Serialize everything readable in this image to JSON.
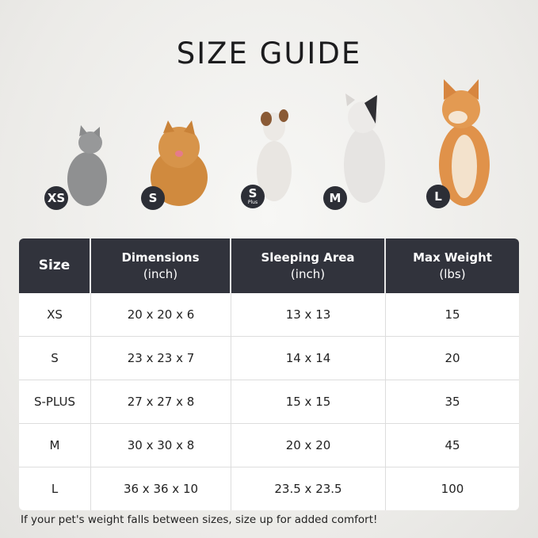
{
  "title": "SIZE GUIDE",
  "pets": [
    {
      "badge": "XS",
      "sub": "",
      "animal": "gray cat",
      "color": "#8f9091"
    },
    {
      "badge": "S",
      "sub": "",
      "animal": "pomeranian",
      "color": "#d08a3e"
    },
    {
      "badge": "S",
      "sub": "Plus",
      "animal": "jack russell terrier",
      "color": "#e9e6e2"
    },
    {
      "badge": "M",
      "sub": "",
      "animal": "french bulldog",
      "color": "#e6e4e2"
    },
    {
      "badge": "L",
      "sub": "",
      "animal": "shiba inu",
      "color": "#e0924a"
    }
  ],
  "table": {
    "headers": [
      {
        "line1": "Size",
        "line2": ""
      },
      {
        "line1": "Dimensions",
        "line2": "(inch)"
      },
      {
        "line1": "Sleeping Area",
        "line2": "(inch)"
      },
      {
        "line1": "Max Weight",
        "line2": "(lbs)"
      }
    ],
    "rows": [
      [
        "XS",
        "20 x 20 x 6",
        "13 x 13",
        "15"
      ],
      [
        "S",
        "23 x 23 x 7",
        "14 x 14",
        "20"
      ],
      [
        "S-PLUS",
        "27 x 27 x 8",
        "15 x 15",
        "35"
      ],
      [
        "M",
        "30 x 30 x 8",
        "20 x 20",
        "45"
      ],
      [
        "L",
        "36 x 36 x 10",
        "23.5 x 23.5",
        "100"
      ]
    ]
  },
  "note": "If your pet's weight falls between sizes, size up for added comfort!",
  "colors": {
    "header_bg": "#31333c",
    "badge_bg": "#2c2e36"
  }
}
